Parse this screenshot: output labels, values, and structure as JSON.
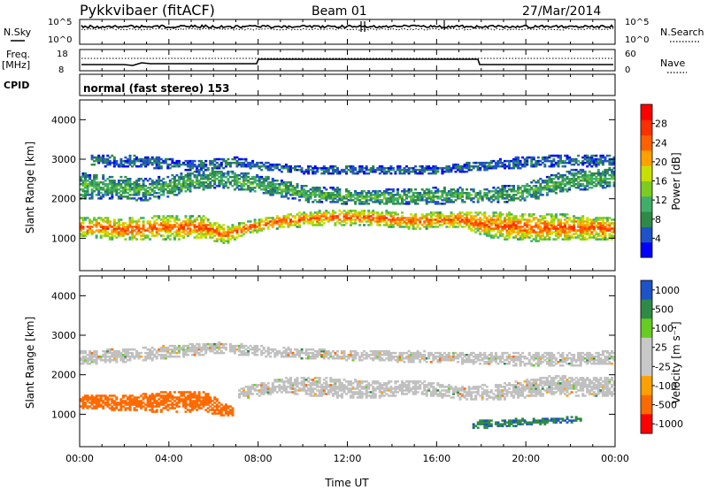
{
  "header": {
    "station": "Pykkvibaer (fitACF)",
    "beam": "Beam 01",
    "date": "27/Mar/2014"
  },
  "summary_panels": {
    "nsky_label": "N.Sky",
    "nsearch_label": "N.Search",
    "n_top_tick": "10^5",
    "n_bottom_tick": "10^0",
    "freq_label": "Freq.",
    "freq_unit": "[MHz]",
    "freq_ticks": [
      "18",
      "8"
    ],
    "nave_label": "Nave",
    "nave_ticks": [
      "60",
      "0"
    ],
    "cpid_label": "CPID",
    "cpid_text": "normal (fast stereo) 153"
  },
  "colors": {
    "power_scale": [
      "#0000ff",
      "#1e52c8",
      "#2e8a46",
      "#3fae6a",
      "#7ccc20",
      "#c8e000",
      "#ffa000",
      "#ff6000",
      "#ff3000",
      "#ff0000"
    ],
    "velocity_scale": [
      "#ff0000",
      "#ff6a00",
      "#ffa000",
      "#c8c8c8",
      "#c8c8c8",
      "#66cc22",
      "#2e8a46",
      "#1e52c8"
    ],
    "ground_scatter": "#c0c0c0"
  },
  "chart_data": [
    {
      "type": "heatmap",
      "quantity": "Power",
      "xlabel": "Time UT",
      "ylabel": "Slant Range [km]",
      "x_ticks": [
        "00:00",
        "04:00",
        "08:00",
        "12:00",
        "16:00",
        "20:00",
        "00:00"
      ],
      "xlim_hours": [
        0,
        24
      ],
      "y_ticks": [
        1000,
        2000,
        3000,
        4000
      ],
      "ylim": [
        180,
        4500
      ],
      "colorbar_title": "Power [dB]",
      "colorbar_ticks": [
        4,
        8,
        12,
        16,
        20,
        24,
        28
      ],
      "colorbar_range": [
        0,
        32
      ],
      "bands": [
        {
          "name": "main",
          "points": [
            [
              0,
              1250,
              520
            ],
            [
              2,
              1200,
              560
            ],
            [
              4,
              1250,
              620
            ],
            [
              5.5,
              1250,
              600
            ],
            [
              6.5,
              1050,
              480
            ],
            [
              7.5,
              1250,
              320
            ],
            [
              9,
              1400,
              360
            ],
            [
              11,
              1500,
              400
            ],
            [
              13,
              1500,
              420
            ],
            [
              15,
              1400,
              400
            ],
            [
              17,
              1450,
              420
            ],
            [
              18.5,
              1300,
              680
            ],
            [
              20,
              1250,
              720
            ],
            [
              22,
              1250,
              650
            ],
            [
              24,
              1200,
              550
            ]
          ],
          "value": 22
        },
        {
          "name": "upper",
          "points": [
            [
              0,
              2300,
              650
            ],
            [
              3,
              2200,
              550
            ],
            [
              6,
              2500,
              500
            ],
            [
              8,
              2350,
              450
            ],
            [
              10,
              2100,
              420
            ],
            [
              13,
              2000,
              380
            ],
            [
              16,
              2050,
              420
            ],
            [
              18,
              2050,
              380
            ],
            [
              20,
              2150,
              480
            ],
            [
              22,
              2450,
              550
            ],
            [
              24,
              2500,
              500
            ]
          ],
          "value": 10
        },
        {
          "name": "far",
          "points": [
            [
              0.5,
              2950,
              300
            ],
            [
              3,
              2900,
              300
            ],
            [
              5,
              2800,
              250
            ],
            [
              7,
              2900,
              250
            ],
            [
              8,
              2800,
              200
            ],
            [
              10,
              2700,
              200
            ],
            [
              16,
              2700,
              200
            ],
            [
              20,
              2900,
              300
            ],
            [
              24,
              2950,
              300
            ]
          ],
          "value": 6
        }
      ]
    },
    {
      "type": "heatmap",
      "quantity": "Velocity",
      "xlabel": "Time UT",
      "ylabel": "Slant Range [km]",
      "x_ticks": [
        "00:00",
        "04:00",
        "08:00",
        "12:00",
        "16:00",
        "20:00",
        "00:00"
      ],
      "xlim_hours": [
        0,
        24
      ],
      "y_ticks": [
        1000,
        2000,
        3000,
        4000
      ],
      "ylim": [
        180,
        4500
      ],
      "colorbar_title": "Velocity [m s⁻¹]",
      "colorbar_ticks": [
        "1000",
        "500",
        "100",
        "25",
        "-25",
        "-100",
        "-500",
        "-1000"
      ],
      "bands": [
        {
          "name": "gs-main",
          "points": [
            [
              7,
              1500,
              300
            ],
            [
              9,
              1700,
              380
            ],
            [
              11,
              1650,
              500
            ],
            [
              13,
              1600,
              460
            ],
            [
              15,
              1650,
              380
            ],
            [
              17,
              1500,
              340
            ],
            [
              19,
              1550,
              420
            ],
            [
              21,
              1700,
              500
            ],
            [
              24,
              1650,
              480
            ]
          ],
          "value": 0
        },
        {
          "name": "gs-upper",
          "points": [
            [
              0,
              2400,
              350
            ],
            [
              3,
              2500,
              350
            ],
            [
              6,
              2650,
              300
            ],
            [
              10,
              2500,
              250
            ],
            [
              13,
              2450,
              280
            ],
            [
              17,
              2400,
              300
            ],
            [
              21,
              2350,
              350
            ],
            [
              24,
              2400,
              350
            ]
          ],
          "value": 0
        },
        {
          "name": "neg-flow",
          "points": [
            [
              0,
              1300,
              350
            ],
            [
              2,
              1250,
              400
            ],
            [
              4,
              1300,
              550
            ],
            [
              5.5,
              1300,
              520
            ],
            [
              6.8,
              1000,
              280
            ]
          ],
          "value": -300
        },
        {
          "name": "pos-flow",
          "points": [
            [
              17.5,
              700,
              200
            ],
            [
              19,
              750,
              200
            ],
            [
              21,
              800,
              150
            ],
            [
              22.5,
              850,
              150
            ]
          ],
          "value": 400
        }
      ]
    }
  ]
}
